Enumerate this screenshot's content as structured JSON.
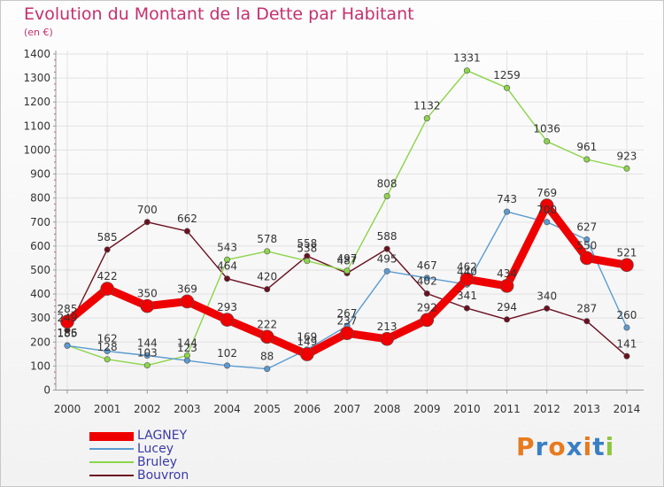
{
  "chart_data": {
    "type": "line",
    "title": "Evolution du Montant de la Dette par Habitant",
    "subtitle": "(en €)",
    "xlabel": "",
    "ylabel": "",
    "ylim": [
      0,
      1400
    ],
    "y_ticks": [
      "0",
      "100",
      "200",
      "300",
      "400",
      "500",
      "600",
      "700",
      "800",
      "900",
      "1000",
      "1100",
      "1200",
      "1300",
      "1400"
    ],
    "categories": [
      "2000",
      "2001",
      "2002",
      "2003",
      "2004",
      "2005",
      "2006",
      "2007",
      "2008",
      "2009",
      "2010",
      "2011",
      "2012",
      "2013",
      "2014"
    ],
    "legend_position": "bottom-left",
    "grid": true,
    "series": [
      {
        "name": "Bouvron",
        "color": "#6b1020",
        "values": [
          249,
          585,
          700,
          662,
          464,
          420,
          558,
          487,
          588,
          402,
          341,
          294,
          340,
          287,
          141
        ]
      },
      {
        "name": "Bruley",
        "color": "#8cd44a",
        "values": [
          186,
          128,
          103,
          144,
          543,
          578,
          538,
          497,
          808,
          1132,
          1331,
          1259,
          1036,
          961,
          923
        ]
      },
      {
        "name": "Lucey",
        "color": "#5b9bd0",
        "values": [
          185,
          162,
          144,
          123,
          102,
          88,
          169,
          267,
          495,
          467,
          440,
          743,
          700,
          627,
          260
        ]
      },
      {
        "name": "LAGNEY",
        "color": "#ee0000",
        "values": [
          285,
          422,
          350,
          369,
          293,
          222,
          149,
          237,
          213,
          292,
          462,
          434,
          769,
          550,
          521
        ]
      }
    ]
  },
  "legend": {
    "items": [
      {
        "label": "LAGNEY",
        "color": "#ee0000"
      },
      {
        "label": "Lucey",
        "color": "#5b9bd0"
      },
      {
        "label": "Bruley",
        "color": "#8cd44a"
      },
      {
        "label": "Bouvron",
        "color": "#6b1020"
      }
    ]
  },
  "logo": {
    "text": "Proxiti",
    "colors": [
      "#e87a1e",
      "#3a7fc4",
      "#e87a1e",
      "#3a7fc4",
      "#e87a1e",
      "#3a7fc4",
      "#8cc63f"
    ]
  }
}
